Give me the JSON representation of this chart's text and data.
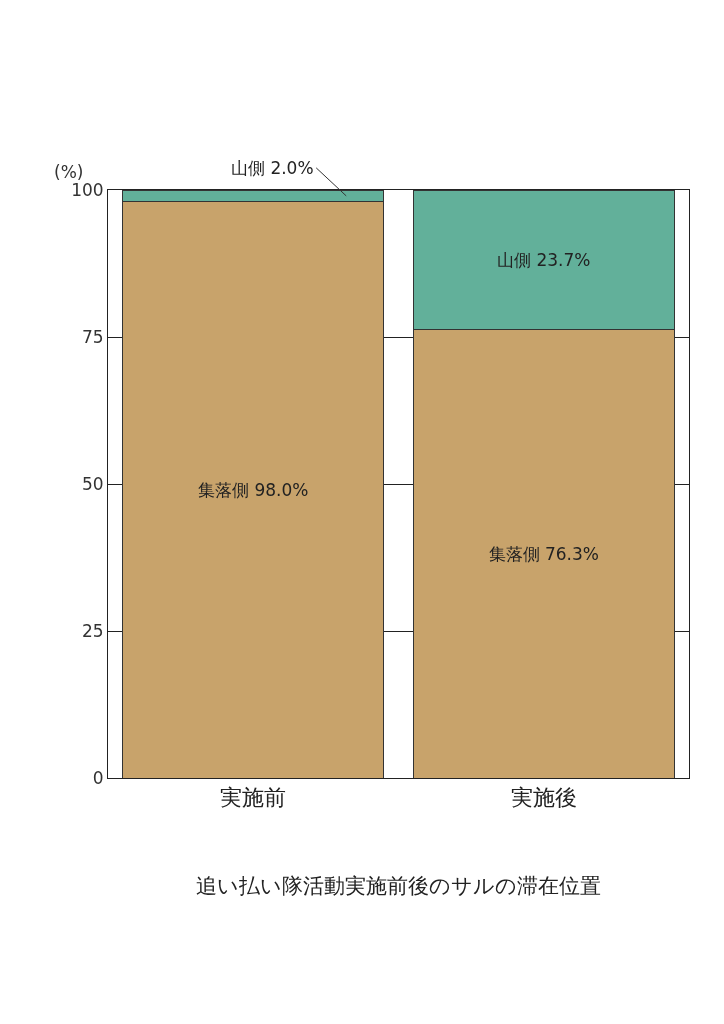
{
  "chart_data": {
    "type": "bar",
    "stacked": true,
    "title": "追い払い隊活動実施前後のサルの滞在位置",
    "ylabel": "(%)",
    "categories": [
      "実施前",
      "実施後"
    ],
    "series": [
      {
        "name": "集落側",
        "color": "#c8a36b",
        "values": [
          98.0,
          76.3
        ],
        "value_labels": [
          "98.0%",
          "76.3%"
        ]
      },
      {
        "name": "山側",
        "color": "#62b09a",
        "values": [
          2.0,
          23.7
        ],
        "value_labels": [
          "2.0%",
          "23.7%"
        ]
      }
    ],
    "ylim": [
      0,
      100
    ],
    "yticks": [
      0,
      25,
      50,
      75,
      100
    ],
    "grid": "y",
    "legend": false
  }
}
